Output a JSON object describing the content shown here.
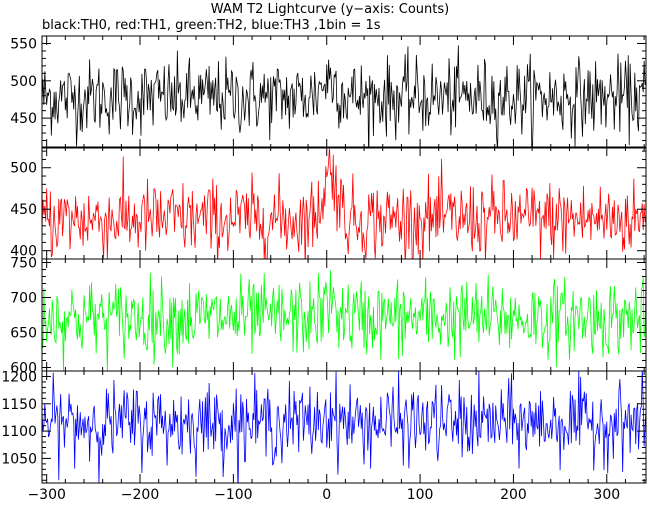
{
  "chart_data": {
    "type": "line",
    "title": "WAM T2 Lightcurve (y−axis: Counts)",
    "subtitle": "black:TH0, red:TH1, green:TH2, blue:TH3 ,1bin = 1s",
    "xlim": [
      -305,
      342
    ],
    "x_ticks": [
      -300,
      -200,
      -100,
      0,
      100,
      200,
      300
    ],
    "x_tick_labels": [
      "−300",
      "−200",
      "−100",
      "0",
      "100",
      "200",
      "300"
    ],
    "x_step": 1,
    "panels": [
      {
        "series": "TH0",
        "color": "#000000",
        "ylim": [
          410,
          560
        ],
        "y_ticks": [
          450,
          500,
          550
        ],
        "mean": 478,
        "noise_sd": 25,
        "peak": {
          "x": 3,
          "height": 25,
          "width": 12
        }
      },
      {
        "series": "TH1",
        "color": "#ff0000",
        "ylim": [
          390,
          525
        ],
        "y_ticks": [
          400,
          450,
          500
        ],
        "mean": 438,
        "noise_sd": 23,
        "peak": {
          "x": 4,
          "height": 60,
          "width": 10
        }
      },
      {
        "series": "TH2",
        "color": "#00ff00",
        "ylim": [
          595,
          755
        ],
        "y_ticks": [
          600,
          650,
          700,
          750
        ],
        "mean": 671,
        "noise_sd": 27,
        "peak": {
          "x": 4,
          "height": 20,
          "width": 10
        }
      },
      {
        "series": "TH3",
        "color": "#0000ff",
        "ylim": [
          1005,
          1210
        ],
        "y_ticks": [
          1050,
          1100,
          1150,
          1200
        ],
        "mean": 1115,
        "noise_sd": 35,
        "peak": {
          "x": 4,
          "height": 15,
          "width": 10
        }
      }
    ]
  }
}
